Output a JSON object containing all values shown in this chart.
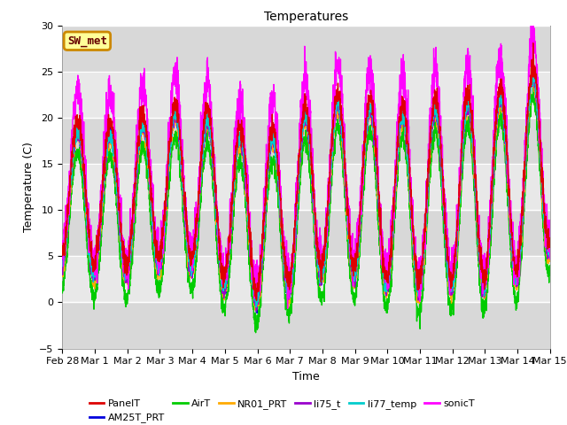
{
  "title": "Temperatures",
  "xlabel": "Time",
  "ylabel": "Temperature (C)",
  "ylim": [
    -5,
    30
  ],
  "xlim": [
    0,
    15
  ],
  "series_colors": {
    "PanelT": "#dd0000",
    "AM25T_PRT": "#0000dd",
    "AirT": "#00cc00",
    "NR01_PRT": "#ffaa00",
    "li75_t": "#9900cc",
    "li77_temp": "#00cccc",
    "sonicT": "#ff00ff"
  },
  "legend_label": "SW_met",
  "legend_box_color": "#ffff99",
  "legend_box_edge": "#cc8800",
  "background_color": "#ffffff",
  "plot_bg_color": "#e8e8e8",
  "tick_labels": [
    "Feb 28",
    "Mar 1",
    "Mar 2",
    "Mar 3",
    "Mar 4",
    "Mar 5",
    "Mar 6",
    "Mar 7",
    "Mar 8",
    "Mar 9",
    "Mar 10",
    "Mar 11",
    "Mar 12",
    "Mar 13",
    "Mar 14",
    "Mar 15"
  ]
}
